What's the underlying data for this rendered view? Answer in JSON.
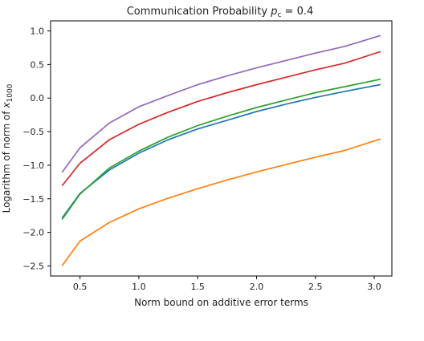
{
  "chart_data": {
    "type": "line",
    "title": "Communication Probability ",
    "title_symbol": "p",
    "title_subscript": "c",
    "title_value": " = 0.4",
    "xlabel": "Norm bound on additive error terms",
    "ylabel_prefix": "Logarithm of norm of ",
    "ylabel_symbol": "x",
    "ylabel_subscript": "1000",
    "xlim": [
      0.25,
      3.15
    ],
    "ylim": [
      -2.65,
      1.15
    ],
    "xticks": [
      0.5,
      1.0,
      1.5,
      2.0,
      2.5,
      3.0
    ],
    "xtick_labels": [
      "0.5",
      "1.0",
      "1.5",
      "2.0",
      "2.5",
      "3.0"
    ],
    "yticks": [
      -2.5,
      -2.0,
      -1.5,
      -1.0,
      -0.5,
      0.0,
      0.5,
      1.0
    ],
    "ytick_labels": [
      "−2.5",
      "−2.0",
      "−1.5",
      "−1.0",
      "−0.5",
      "0.0",
      "0.5",
      "1.0"
    ],
    "grid": false,
    "x": [
      0.35,
      0.5,
      0.75,
      1.0,
      1.25,
      1.5,
      1.75,
      2.0,
      2.25,
      2.5,
      2.75,
      3.05
    ],
    "series": [
      {
        "color": "#1f77b4",
        "values": [
          -1.78,
          -1.42,
          -1.07,
          -0.82,
          -0.62,
          -0.46,
          -0.33,
          -0.2,
          -0.09,
          0.01,
          0.1,
          0.2
        ]
      },
      {
        "color": "#ff7f0e",
        "values": [
          -2.49,
          -2.13,
          -1.85,
          -1.65,
          -1.49,
          -1.35,
          -1.22,
          -1.1,
          -0.99,
          -0.88,
          -0.78,
          -0.61
        ]
      },
      {
        "color": "#2ca02c",
        "values": [
          -1.8,
          -1.43,
          -1.04,
          -0.79,
          -0.58,
          -0.41,
          -0.27,
          -0.14,
          -0.03,
          0.08,
          0.17,
          0.28
        ]
      },
      {
        "color": "#d62728",
        "values": [
          -1.3,
          -0.97,
          -0.62,
          -0.39,
          -0.21,
          -0.05,
          0.08,
          0.2,
          0.31,
          0.42,
          0.52,
          0.69
        ]
      },
      {
        "color": "#9467bd",
        "values": [
          -1.1,
          -0.74,
          -0.37,
          -0.13,
          0.04,
          0.2,
          0.33,
          0.45,
          0.56,
          0.67,
          0.77,
          0.93
        ]
      }
    ]
  }
}
